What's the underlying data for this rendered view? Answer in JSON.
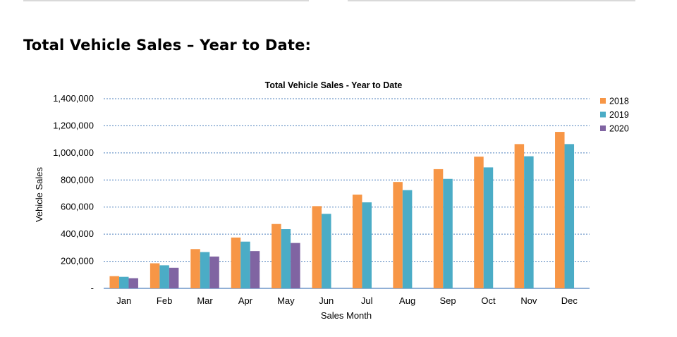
{
  "page": {
    "heading": "Total Vehicle Sales – Year to Date:"
  },
  "chart_data": {
    "type": "bar",
    "title": "Total Vehicle Sales - Year to Date",
    "xlabel": "Sales Month",
    "ylabel": "Vehicle Sales",
    "ylim": [
      0,
      1400000
    ],
    "yticks": [
      {
        "value": 0,
        "label": "-"
      },
      {
        "value": 200000,
        "label": "200,000"
      },
      {
        "value": 400000,
        "label": "400,000"
      },
      {
        "value": 600000,
        "label": "600,000"
      },
      {
        "value": 800000,
        "label": "800,000"
      },
      {
        "value": 1000000,
        "label": "1,000,000"
      },
      {
        "value": 1200000,
        "label": "1,200,000"
      },
      {
        "value": 1400000,
        "label": "1,400,000"
      }
    ],
    "grid": true,
    "legend": "right",
    "categories": [
      "Jan",
      "Feb",
      "Mar",
      "Apr",
      "May",
      "Jun",
      "Jul",
      "Aug",
      "Sep",
      "Oct",
      "Nov",
      "Dec"
    ],
    "series": [
      {
        "name": "2018",
        "color": "#f79646",
        "values": [
          90000,
          185000,
          290000,
          375000,
          475000,
          607000,
          692000,
          785000,
          880000,
          972000,
          1065000,
          1155000
        ]
      },
      {
        "name": "2019",
        "color": "#4bacc6",
        "values": [
          85000,
          170000,
          268000,
          345000,
          437000,
          550000,
          635000,
          725000,
          808000,
          893000,
          975000,
          1065000
        ]
      },
      {
        "name": "2020",
        "color": "#8064a2",
        "values": [
          75000,
          152000,
          235000,
          275000,
          335000,
          null,
          null,
          null,
          null,
          null,
          null,
          null
        ]
      }
    ]
  }
}
